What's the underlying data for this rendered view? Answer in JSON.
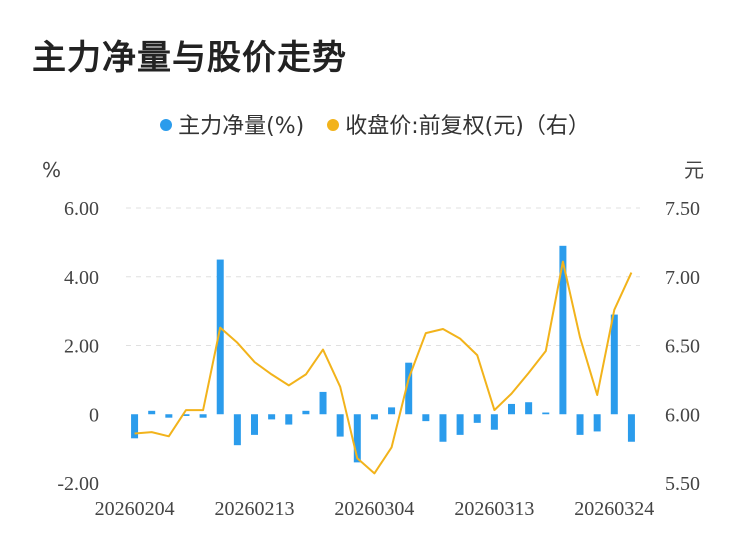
{
  "title": "主力净量与股价走势",
  "legend": {
    "bar_label": "主力净量(%)",
    "line_label": "收盘价:前复权(元)（右）"
  },
  "colors": {
    "bar": "#2b9cec",
    "line": "#f2b31b",
    "grid": "#e0e0e0"
  },
  "chart_data": {
    "type": "bar",
    "title": "主力净量与股价走势",
    "y_left": {
      "unit_label": "%",
      "ticks": [
        "6.00",
        "4.00",
        "2.00",
        "0",
        "-2.00"
      ],
      "range": [
        -2,
        6
      ]
    },
    "y_right": {
      "unit_label": "元",
      "ticks": [
        "7.50",
        "7.00",
        "6.50",
        "6.00",
        "5.50"
      ],
      "range": [
        5.5,
        7.5
      ]
    },
    "x_tick_labels": [
      "20260204",
      "20260213",
      "20260304",
      "20260313",
      "20260324"
    ],
    "x_tick_indices": [
      0,
      7,
      14,
      21,
      28
    ],
    "series": [
      {
        "name": "主力净量(%)",
        "type": "bar",
        "values": [
          -0.7,
          0.1,
          -0.1,
          -0.05,
          -0.1,
          4.5,
          -0.9,
          -0.6,
          -0.15,
          -0.3,
          0.1,
          0.65,
          -0.65,
          -1.4,
          -0.15,
          0.2,
          1.5,
          -0.2,
          -0.8,
          -0.6,
          -0.25,
          -0.45,
          0.3,
          0.35,
          0.05,
          4.9,
          -0.6,
          -0.5,
          2.9,
          -0.8
        ]
      },
      {
        "name": "收盘价:前复权(元)（右）",
        "type": "line",
        "values": [
          5.86,
          5.87,
          5.84,
          6.03,
          6.03,
          6.63,
          6.52,
          6.38,
          6.29,
          6.21,
          6.29,
          6.47,
          6.2,
          5.68,
          5.57,
          5.76,
          6.26,
          6.59,
          6.62,
          6.55,
          6.43,
          6.03,
          6.15,
          6.3,
          6.46,
          7.11,
          6.56,
          6.14,
          6.76,
          7.03
        ]
      }
    ]
  }
}
